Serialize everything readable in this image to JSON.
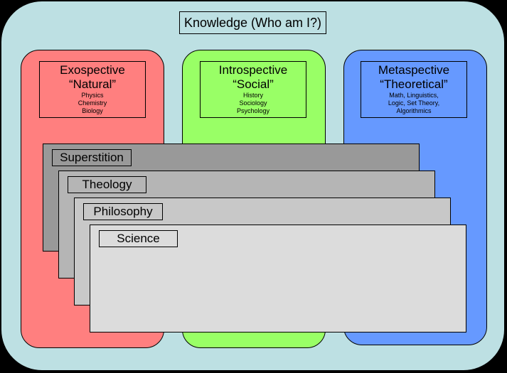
{
  "title": "Knowledge (Who am I?)",
  "columns": [
    {
      "name": "Exospective",
      "subtitle": "“Natural”",
      "items": [
        "Physics",
        "Chemistry",
        "Biology"
      ],
      "color": "#ff7f7f"
    },
    {
      "name": "Introspective",
      "subtitle": "“Social”",
      "items": [
        "History",
        "Sociology",
        "Psychology"
      ],
      "color": "#99ff66"
    },
    {
      "name": "Metaspective",
      "subtitle": "“Theoretical”",
      "items": [
        "Math, Linguistics,",
        "Logic, Set Theory,",
        "Algorithmics"
      ],
      "color": "#6699ff"
    }
  ],
  "layers": [
    {
      "label": "Superstition",
      "color": "#999999"
    },
    {
      "label": "Theology",
      "color": "#b5b5b5"
    },
    {
      "label": "Philosophy",
      "color": "#c8c8c8"
    },
    {
      "label": "Science",
      "color": "#dcdcdc"
    }
  ],
  "colors": {
    "background": "#bde0e3",
    "frame": "#000000"
  }
}
